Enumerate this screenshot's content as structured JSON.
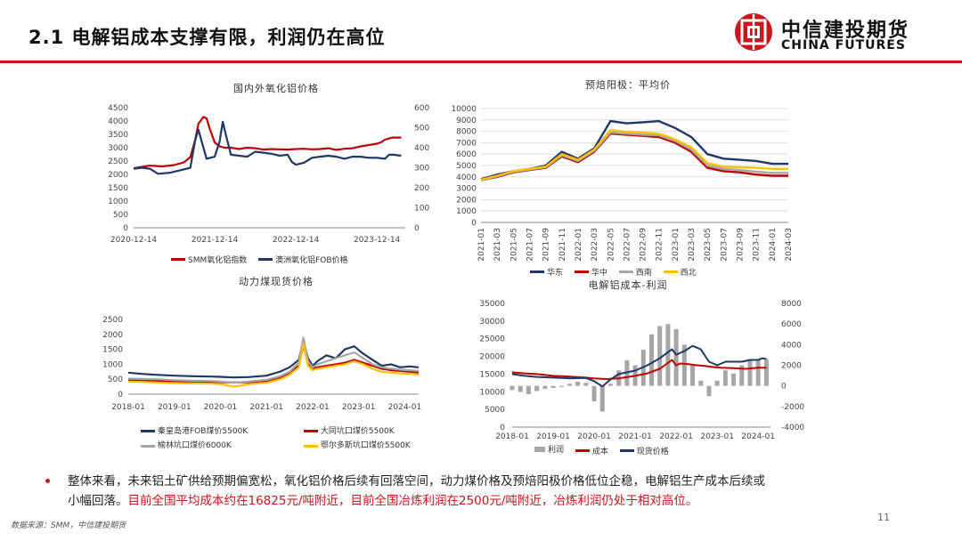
{
  "header": {
    "title": "2.1 电解铝成本支撑有限，利润仍在高位"
  },
  "logo": {
    "name": "中信建投期货",
    "en": "CHINA FUTURES",
    "color": "#c8161d"
  },
  "colors": {
    "red": "#c00000",
    "navy": "#1f3864",
    "gray": "#a6a6a6",
    "yellow": "#ffc000",
    "accent": "#c8161d"
  },
  "chart_data": [
    {
      "type": "line",
      "title": "国内外氧化铝价格",
      "x_ticks": [
        "2020-12-14",
        "2021-12-14",
        "2022-12-14",
        "2023-12-14"
      ],
      "y_left_ticks": [
        "4500",
        "4000",
        "3500",
        "3000",
        "2500",
        "2000",
        "1500",
        "1000",
        "500",
        "0"
      ],
      "y_right_ticks": [
        "600",
        "500",
        "400",
        "300",
        "200",
        "100",
        "0"
      ],
      "ylim_left": [
        0,
        4500
      ],
      "ylim_right": [
        0,
        600
      ],
      "x_domain": [
        0,
        3.35
      ],
      "series": [
        {
          "name": "SMM氧化铝指数",
          "axis": "left",
          "color": "#c00000",
          "x": [
            0,
            0.1,
            0.2,
            0.35,
            0.5,
            0.62,
            0.7,
            0.76,
            0.8,
            0.86,
            0.9,
            0.94,
            1.0,
            1.06,
            1.12,
            1.2,
            1.3,
            1.4,
            1.5,
            1.6,
            1.7,
            1.8,
            1.9,
            2.0,
            2.1,
            2.2,
            2.3,
            2.4,
            2.5,
            2.6,
            2.7,
            2.8,
            2.9,
            3.0,
            3.05,
            3.1,
            3.15,
            3.2,
            3.3
          ],
          "y": [
            2230,
            2280,
            2330,
            2300,
            2350,
            2450,
            2650,
            3300,
            3900,
            4150,
            4100,
            3700,
            3200,
            3050,
            3000,
            3000,
            2950,
            3000,
            2980,
            2930,
            2950,
            2940,
            2930,
            2950,
            2960,
            2940,
            2950,
            2980,
            2920,
            2960,
            2980,
            3050,
            3100,
            3150,
            3200,
            3300,
            3350,
            3380,
            3380
          ]
        },
        {
          "name": "澳洲氧化铝FOB价格",
          "axis": "right",
          "color": "#1f3864",
          "x": [
            0,
            0.1,
            0.2,
            0.3,
            0.45,
            0.6,
            0.7,
            0.76,
            0.8,
            0.84,
            0.9,
            1.0,
            1.06,
            1.1,
            1.14,
            1.2,
            1.3,
            1.4,
            1.5,
            1.6,
            1.7,
            1.8,
            1.9,
            1.95,
            2.0,
            2.1,
            2.2,
            2.3,
            2.4,
            2.5,
            2.6,
            2.7,
            2.8,
            2.9,
            3.0,
            3.1,
            3.15,
            3.2,
            3.3
          ],
          "y": [
            295,
            300,
            295,
            270,
            275,
            290,
            300,
            440,
            490,
            430,
            345,
            355,
            430,
            530,
            460,
            365,
            360,
            355,
            380,
            375,
            370,
            360,
            365,
            330,
            315,
            325,
            350,
            355,
            360,
            355,
            345,
            355,
            355,
            350,
            350,
            345,
            365,
            365,
            360
          ]
        }
      ]
    },
    {
      "type": "line",
      "title": "预焙阳极：平均价",
      "x_ticks": [
        "2021-01",
        "2021-03",
        "2021-05",
        "2021-07",
        "2021-09",
        "2021-11",
        "2022-01",
        "2022-03",
        "2022-05",
        "2022-07",
        "2022-09",
        "2022-11",
        "2023-01",
        "2023-03",
        "2023-05",
        "2023-07",
        "2023-09",
        "2023-11",
        "2024-01",
        "2024-03"
      ],
      "y_ticks": [
        "10000",
        "9000",
        "8000",
        "7000",
        "6000",
        "5000",
        "4000",
        "3000",
        "2000",
        "1000",
        "0"
      ],
      "ylim": [
        0,
        10000
      ],
      "series": [
        {
          "name": "华东",
          "color": "#1f3864",
          "x": [
            0,
            1,
            2,
            3,
            4,
            5,
            6,
            7,
            8,
            9,
            10,
            11,
            12,
            13,
            14,
            15,
            16,
            17,
            18,
            19
          ],
          "y": [
            3800,
            4200,
            4500,
            4700,
            5000,
            6200,
            5600,
            6500,
            8900,
            8700,
            8800,
            8900,
            8300,
            7500,
            6000,
            5600,
            5500,
            5400,
            5150,
            5150
          ]
        },
        {
          "name": "华中",
          "color": "#c00000",
          "x": [
            0,
            1,
            2,
            3,
            4,
            5,
            6,
            7,
            8,
            9,
            10,
            11,
            12,
            13,
            14,
            15,
            16,
            17,
            18,
            19
          ],
          "y": [
            3700,
            4000,
            4400,
            4600,
            4800,
            5800,
            5300,
            6200,
            7800,
            7700,
            7600,
            7500,
            7000,
            6200,
            4800,
            4500,
            4400,
            4200,
            4100,
            4100
          ]
        },
        {
          "name": "西南",
          "color": "#a6a6a6",
          "x": [
            0,
            1,
            2,
            3,
            4,
            5,
            6,
            7,
            8,
            9,
            10,
            11,
            12,
            13,
            14,
            15,
            16,
            17,
            18,
            19
          ],
          "y": [
            3700,
            4050,
            4450,
            4650,
            4850,
            5900,
            5400,
            6300,
            7900,
            7800,
            7700,
            7650,
            7150,
            6400,
            5000,
            4700,
            4600,
            4450,
            4350,
            4350
          ]
        },
        {
          "name": "西北",
          "color": "#ffc000",
          "x": [
            0,
            1,
            2,
            3,
            4,
            5,
            6,
            7,
            8,
            9,
            10,
            11,
            12,
            13,
            14,
            15,
            16,
            17,
            18,
            19
          ],
          "y": [
            3750,
            4100,
            4500,
            4700,
            4900,
            6000,
            5500,
            6400,
            8100,
            7950,
            7900,
            7800,
            7300,
            6600,
            5200,
            4900,
            4850,
            4800,
            4700,
            4700
          ]
        }
      ]
    },
    {
      "type": "line",
      "title": "动力煤现货价格",
      "x_ticks": [
        "2018-01",
        "2019-01",
        "2020-01",
        "2021-01",
        "2022-01",
        "2023-01",
        "2024-01"
      ],
      "y_ticks": [
        "2500",
        "2000",
        "1500",
        "1000",
        "500",
        "0"
      ],
      "ylim": [
        0,
        2500
      ],
      "series": [
        {
          "name": "秦皇岛港FOB煤价5500K",
          "color": "#1f3864",
          "x": [
            0,
            0.3,
            0.6,
            1.0,
            1.4,
            1.8,
            2.0,
            2.3,
            2.6,
            3.0,
            3.3,
            3.5,
            3.7,
            3.8,
            3.9,
            4.0,
            4.1,
            4.3,
            4.5,
            4.7,
            4.9,
            5.1,
            5.3,
            5.5,
            5.7,
            5.9,
            6.1,
            6.3
          ],
          "y": [
            720,
            680,
            650,
            620,
            600,
            590,
            580,
            560,
            570,
            620,
            760,
            900,
            1150,
            1800,
            1200,
            950,
            1100,
            1300,
            1200,
            1500,
            1600,
            1350,
            1150,
            950,
            1000,
            900,
            930,
            900
          ]
        },
        {
          "name": "大同坑口煤价5500K",
          "color": "#c00000",
          "x": [
            0,
            0.3,
            0.6,
            1.0,
            1.4,
            1.8,
            2.0,
            2.3,
            2.6,
            3.0,
            3.3,
            3.5,
            3.7,
            3.8,
            3.9,
            4.0,
            4.1,
            4.3,
            4.5,
            4.7,
            4.9,
            5.1,
            5.3,
            5.5,
            5.7,
            5.9,
            6.1,
            6.3
          ],
          "y": [
            470,
            460,
            450,
            430,
            420,
            410,
            400,
            390,
            400,
            440,
            560,
            700,
            950,
            1650,
            1000,
            850,
            900,
            950,
            1000,
            1050,
            1150,
            1050,
            950,
            850,
            800,
            780,
            750,
            730
          ]
        },
        {
          "name": "榆林坑口煤价6000K",
          "color": "#a6a6a6",
          "x": [
            0,
            0.3,
            0.6,
            1.0,
            1.4,
            1.8,
            2.0,
            2.3,
            2.6,
            3.0,
            3.3,
            3.5,
            3.7,
            3.8,
            3.9,
            4.0,
            4.1,
            4.3,
            4.5,
            4.7,
            4.9,
            5.1,
            5.3,
            5.5,
            5.7,
            5.9,
            6.1,
            6.3
          ],
          "y": [
            520,
            510,
            500,
            470,
            450,
            440,
            420,
            380,
            420,
            480,
            600,
            750,
            1050,
            1900,
            1100,
            900,
            1000,
            1100,
            1200,
            1300,
            1400,
            1200,
            1000,
            900,
            850,
            820,
            800,
            780
          ]
        },
        {
          "name": "鄂尔多斯坑口煤价5500K",
          "color": "#ffc000",
          "x": [
            0,
            0.3,
            0.6,
            1.0,
            1.4,
            1.8,
            2.0,
            2.3,
            2.6,
            3.0,
            3.3,
            3.5,
            3.7,
            3.8,
            3.9,
            4.0,
            4.1,
            4.3,
            4.5,
            4.7,
            4.9,
            5.1,
            5.3,
            5.5,
            5.7,
            5.9,
            6.1,
            6.3
          ],
          "y": [
            420,
            410,
            390,
            370,
            360,
            350,
            340,
            250,
            330,
            380,
            500,
            650,
            900,
            1700,
            950,
            800,
            850,
            900,
            950,
            1000,
            1100,
            1000,
            850,
            750,
            720,
            700,
            680,
            660
          ]
        }
      ]
    },
    {
      "type": "bar",
      "title": "电解铝成本-利润",
      "x_ticks": [
        "2018-01",
        "2019-01",
        "2020-01",
        "2021-01",
        "2022-01",
        "2023-01",
        "2024-01"
      ],
      "y_left_ticks": [
        "35000",
        "30000",
        "25000",
        "20000",
        "15000",
        "10000",
        "5000",
        "0"
      ],
      "y_right_ticks": [
        "8000",
        "6000",
        "4000",
        "2000",
        "0",
        "-2000",
        "-4000"
      ],
      "ylim_left": [
        0,
        35000
      ],
      "ylim_right": [
        -4000,
        8000
      ],
      "profit": {
        "name": "利润",
        "color": "#a6a6a6",
        "x": [
          0,
          0.2,
          0.4,
          0.6,
          0.8,
          1.0,
          1.2,
          1.4,
          1.6,
          1.8,
          2.0,
          2.2,
          2.4,
          2.6,
          2.8,
          3.0,
          3.2,
          3.4,
          3.6,
          3.8,
          4.0,
          4.2,
          4.4,
          4.6,
          4.8,
          5.0,
          5.2,
          5.4,
          5.6,
          5.8,
          6.0,
          6.2
        ],
        "y": [
          -400,
          -600,
          -800,
          -500,
          -300,
          -200,
          -100,
          200,
          400,
          300,
          -1500,
          -2500,
          200,
          1500,
          2500,
          2000,
          3500,
          5000,
          5800,
          6000,
          5500,
          4000,
          2000,
          500,
          -1000,
          500,
          1500,
          1200,
          2000,
          2500,
          2500,
          2600
        ]
      },
      "series": [
        {
          "name": "成本",
          "axis": "left",
          "color": "#c00000",
          "x": [
            0,
            0.3,
            0.6,
            1.0,
            1.4,
            1.8,
            2.0,
            2.3,
            2.6,
            3.0,
            3.3,
            3.6,
            3.9,
            4.0,
            4.1,
            4.3,
            4.5,
            4.7,
            4.9,
            5.1,
            5.4,
            5.7,
            6.0,
            6.2
          ],
          "y": [
            15500,
            15200,
            15000,
            14500,
            14300,
            14000,
            13800,
            13600,
            13800,
            14500,
            15200,
            16500,
            19000,
            17500,
            18000,
            17800,
            17500,
            17300,
            17000,
            16800,
            16700,
            16500,
            16800,
            16825
          ]
        },
        {
          "name": "现货价格",
          "axis": "left",
          "color": "#1f3864",
          "x": [
            0,
            0.3,
            0.6,
            1.0,
            1.4,
            1.8,
            2.0,
            2.2,
            2.4,
            2.6,
            3.0,
            3.3,
            3.6,
            3.9,
            4.0,
            4.2,
            4.4,
            4.6,
            4.8,
            5.0,
            5.2,
            5.4,
            5.6,
            5.8,
            6.0,
            6.1,
            6.2
          ],
          "y": [
            15000,
            14500,
            14200,
            14000,
            13800,
            13900,
            13000,
            11500,
            13500,
            15000,
            16000,
            17500,
            19500,
            22000,
            20500,
            21500,
            23000,
            22000,
            18500,
            17500,
            18500,
            18500,
            18500,
            19000,
            19000,
            19500,
            19300
          ]
        }
      ]
    }
  ],
  "bullet": {
    "line1": "整体来看，未来铝土矿供给预期偏宽松，氧化铝价格后续有回落空间，动力煤价格及预焙阳极价格低位企稳，电解铝生产成本后续或",
    "line2_black": "小幅回落。",
    "line2_red": "目前全国平均成本约在16825元/吨附近，目前全国冶炼利润在2500元/吨附近，冶炼利润仍处于相对高位。"
  },
  "source": "数据来源：SMM，中信建投期货",
  "page_number": "11"
}
